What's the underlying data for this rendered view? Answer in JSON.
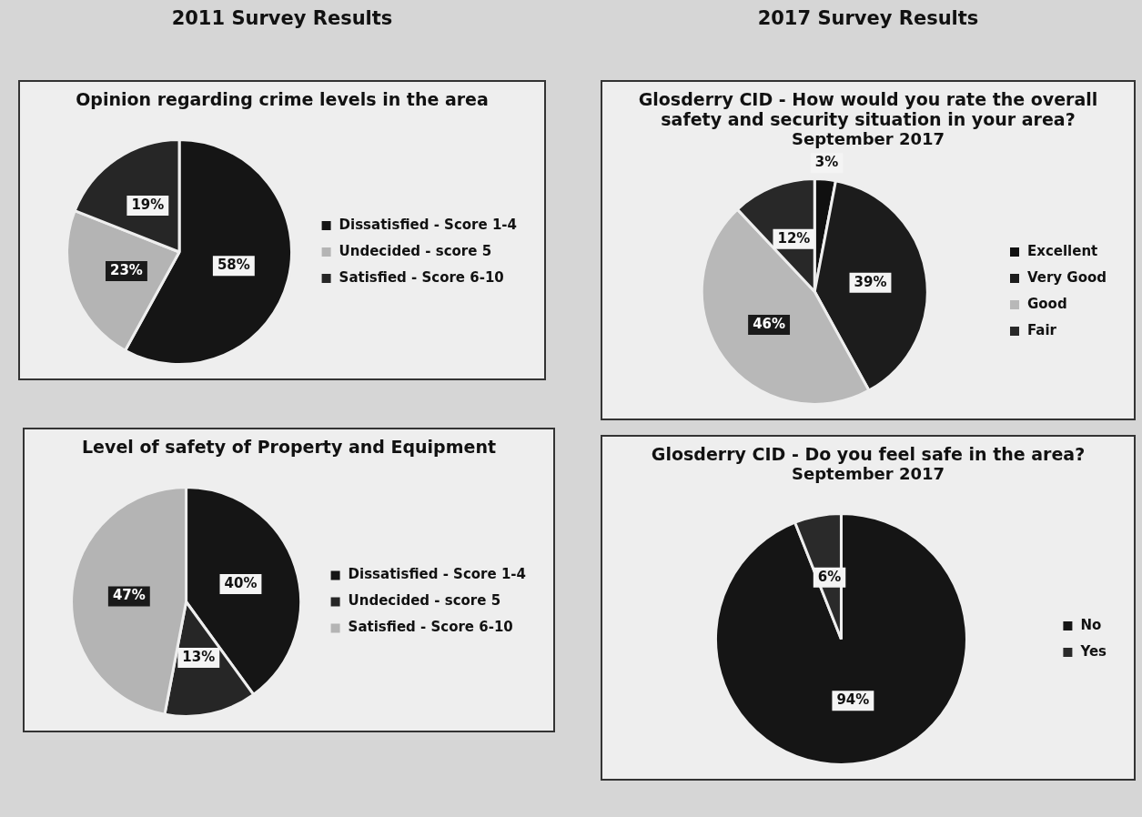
{
  "chart_data": [
    {
      "type": "pie",
      "title": "Opinion regarding crime levels in the area",
      "annotations": [
        "2011 Survey Results"
      ],
      "categories": [
        "Dissatisfied - Score 1-4",
        "Undecided - score 5",
        "Satisfied - Score 6-10"
      ],
      "values": [
        58,
        23,
        19
      ],
      "value_labels": [
        "58%",
        "23%",
        "19%"
      ],
      "colors": [
        "#151515",
        "#b4b4b4",
        "#262626"
      ],
      "legend": "right"
    },
    {
      "type": "pie",
      "title": "Glosderry CID - How would you rate the overall safety and security situation in your area?",
      "subtitle": "September 2017",
      "annotations": [
        "2017 Survey Results"
      ],
      "categories": [
        "Excellent",
        "Very Good",
        "Good",
        "Fair"
      ],
      "values": [
        3,
        39,
        46,
        12
      ],
      "value_labels": [
        "3%",
        "39%",
        "46%",
        "12%"
      ],
      "colors": [
        "#101010",
        "#1c1c1c",
        "#b8b8b8",
        "#282828"
      ],
      "legend": "right"
    },
    {
      "type": "pie",
      "title": "Level of safety of Property and Equipment",
      "categories": [
        "Dissatisfied - Score 1-4",
        "Undecided - score 5",
        "Satisfied - Score 6-10"
      ],
      "values": [
        40,
        13,
        47
      ],
      "value_labels": [
        "40%",
        "13%",
        "47%"
      ],
      "colors": [
        "#151515",
        "#262626",
        "#b4b4b4"
      ],
      "legend": "right"
    },
    {
      "type": "pie",
      "title": "Glosderry CID - Do you feel safe in the area?",
      "subtitle": "September 2017",
      "categories": [
        "No",
        "Yes"
      ],
      "values": [
        94,
        6
      ],
      "value_labels": [
        "94%",
        "6%"
      ],
      "colors": [
        "#151515",
        "#2a2a2a"
      ],
      "legend": "right"
    }
  ]
}
